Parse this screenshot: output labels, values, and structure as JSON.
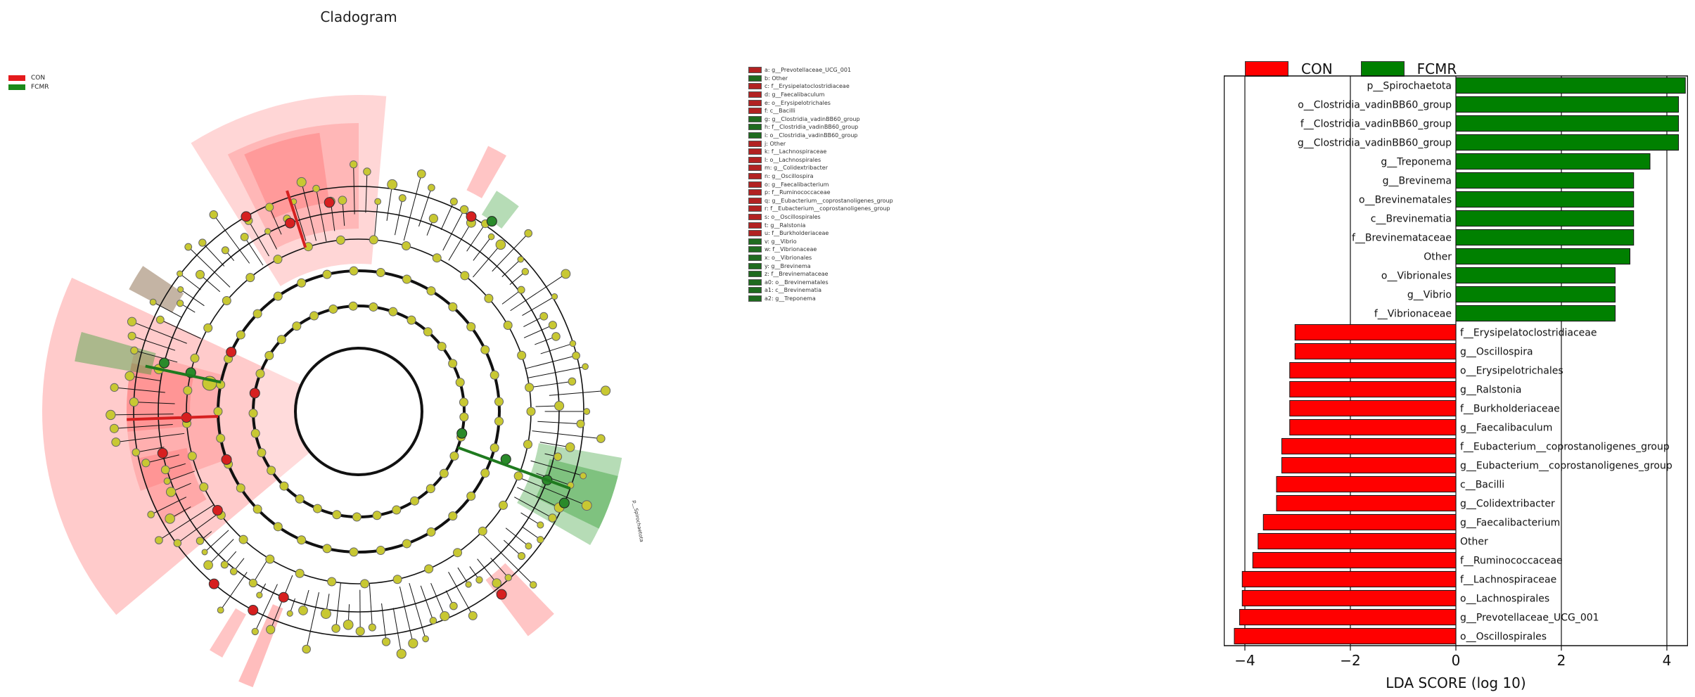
{
  "cladogram": {
    "title": "Cladogram",
    "legend": [
      {
        "label": "CON",
        "color": "#e41a1c"
      },
      {
        "label": "FCMR",
        "color": "#1a8a1a"
      }
    ],
    "key": [
      {
        "text": "a: g__Prevotellaceae_UCG_001",
        "group": "CON"
      },
      {
        "text": "b: Other",
        "group": "FCMR"
      },
      {
        "text": "c: f__Erysipelatoclostridiaceae",
        "group": "CON"
      },
      {
        "text": "d: g__Faecalibaculum",
        "group": "CON"
      },
      {
        "text": "e: o__Erysipelotrichales",
        "group": "CON"
      },
      {
        "text": "f: c__Bacilli",
        "group": "CON"
      },
      {
        "text": "g: g__Clostridia_vadinBB60_group",
        "group": "FCMR"
      },
      {
        "text": "h: f__Clostridia_vadinBB60_group",
        "group": "FCMR"
      },
      {
        "text": "i: o__Clostridia_vadinBB60_group",
        "group": "FCMR"
      },
      {
        "text": "j: Other",
        "group": "CON"
      },
      {
        "text": "k: f__Lachnospiraceae",
        "group": "CON"
      },
      {
        "text": "l: o__Lachnospirales",
        "group": "CON"
      },
      {
        "text": "m: g__Colidextribacter",
        "group": "CON"
      },
      {
        "text": "n: g__Oscillospira",
        "group": "CON"
      },
      {
        "text": "o: g__Faecalibacterium",
        "group": "CON"
      },
      {
        "text": "p: f__Ruminococcaceae",
        "group": "CON"
      },
      {
        "text": "q: g__Eubacterium__coprostanoligenes_group",
        "group": "CON"
      },
      {
        "text": "r: f__Eubacterium__coprostanoligenes_group",
        "group": "CON"
      },
      {
        "text": "s: o__Oscillospirales",
        "group": "CON"
      },
      {
        "text": "t: g__Ralstonia",
        "group": "CON"
      },
      {
        "text": "u: f__Burkholderiaceae",
        "group": "CON"
      },
      {
        "text": "v: g__Vibrio",
        "group": "FCMR"
      },
      {
        "text": "w: f__Vibrionaceae",
        "group": "FCMR"
      },
      {
        "text": "x: o__Vibrionales",
        "group": "FCMR"
      },
      {
        "text": "y: g__Brevinema",
        "group": "FCMR"
      },
      {
        "text": "z: f__Brevinemataceae",
        "group": "FCMR"
      },
      {
        "text": "a0: o__Brevinematales",
        "group": "FCMR"
      },
      {
        "text": "a1: c__Brevinematia",
        "group": "FCMR"
      },
      {
        "text": "a2: g__Treponema",
        "group": "FCMR"
      }
    ],
    "sector_label": "p__Spirochaetota"
  },
  "chart_data": {
    "type": "bar",
    "orientation": "horizontal",
    "xlabel": "LDA SCORE (log 10)",
    "xlim": [
      -4.4,
      4.4
    ],
    "xticks": [
      -4,
      -2,
      0,
      2,
      4
    ],
    "grid": "vertical",
    "legend_position": "top",
    "colors": {
      "CON": "#ff0000",
      "FCMR": "#008000"
    },
    "series": [
      {
        "name": "CON"
      },
      {
        "name": "FCMR"
      }
    ],
    "bars": [
      {
        "label": "p__Spirochaetota",
        "value": 4.35,
        "group": "FCMR"
      },
      {
        "label": "o__Clostridia_vadinBB60_group",
        "value": 4.22,
        "group": "FCMR"
      },
      {
        "label": "f__Clostridia_vadinBB60_group",
        "value": 4.22,
        "group": "FCMR"
      },
      {
        "label": "g__Clostridia_vadinBB60_group",
        "value": 4.22,
        "group": "FCMR"
      },
      {
        "label": "g__Treponema",
        "value": 3.68,
        "group": "FCMR"
      },
      {
        "label": "g__Brevinema",
        "value": 3.37,
        "group": "FCMR"
      },
      {
        "label": "o__Brevinematales",
        "value": 3.37,
        "group": "FCMR"
      },
      {
        "label": "c__Brevinematia",
        "value": 3.37,
        "group": "FCMR"
      },
      {
        "label": "f__Brevinemataceae",
        "value": 3.37,
        "group": "FCMR"
      },
      {
        "label": "Other",
        "value": 3.3,
        "group": "FCMR"
      },
      {
        "label": "o__Vibrionales",
        "value": 3.02,
        "group": "FCMR"
      },
      {
        "label": "g__Vibrio",
        "value": 3.02,
        "group": "FCMR"
      },
      {
        "label": "f__Vibrionaceae",
        "value": 3.02,
        "group": "FCMR"
      },
      {
        "label": "f__Erysipelatoclostridiaceae",
        "value": -3.05,
        "group": "CON"
      },
      {
        "label": "g__Oscillospira",
        "value": -3.05,
        "group": "CON"
      },
      {
        "label": "o__Erysipelotrichales",
        "value": -3.15,
        "group": "CON"
      },
      {
        "label": "g__Ralstonia",
        "value": -3.15,
        "group": "CON"
      },
      {
        "label": "f__Burkholderiaceae",
        "value": -3.15,
        "group": "CON"
      },
      {
        "label": "g__Faecalibaculum",
        "value": -3.15,
        "group": "CON"
      },
      {
        "label": "f__Eubacterium__coprostanoligenes_group",
        "value": -3.3,
        "group": "CON"
      },
      {
        "label": "g__Eubacterium__coprostanoligenes_group",
        "value": -3.3,
        "group": "CON"
      },
      {
        "label": "c__Bacilli",
        "value": -3.4,
        "group": "CON"
      },
      {
        "label": "g__Colidextribacter",
        "value": -3.4,
        "group": "CON"
      },
      {
        "label": "g__Faecalibacterium",
        "value": -3.65,
        "group": "CON"
      },
      {
        "label": "Other",
        "value": -3.75,
        "group": "CON"
      },
      {
        "label": "f__Ruminococcaceae",
        "value": -3.85,
        "group": "CON"
      },
      {
        "label": "f__Lachnospiraceae",
        "value": -4.05,
        "group": "CON"
      },
      {
        "label": "o__Lachnospirales",
        "value": -4.05,
        "group": "CON"
      },
      {
        "label": "g__Prevotellaceae_UCG_001",
        "value": -4.1,
        "group": "CON"
      },
      {
        "label": "o__Oscillospirales",
        "value": -4.2,
        "group": "CON"
      }
    ]
  }
}
